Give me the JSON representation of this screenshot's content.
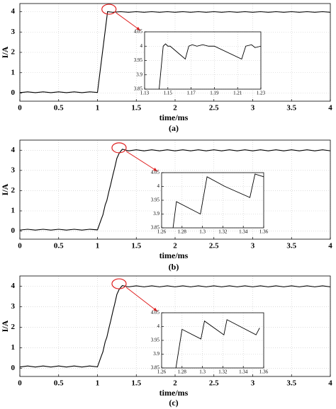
{
  "chart_data": [
    {
      "type": "line",
      "caption": "(a)",
      "x_label": "time/ms",
      "y_label": "I/A",
      "grid": true,
      "xlim": [
        0,
        4
      ],
      "ylim": [
        -0.4,
        4.4
      ],
      "xticks": [
        0,
        0.5,
        1,
        1.5,
        2,
        2.5,
        3,
        3.5,
        4
      ],
      "yticks": [
        0,
        1,
        2,
        3,
        4
      ],
      "series": [
        {
          "color": "#000000",
          "x": [
            0,
            0.1,
            0.2,
            0.3,
            0.4,
            0.5,
            0.6,
            0.7,
            0.8,
            0.9,
            1.0,
            1.13,
            1.2,
            1.3,
            1.4,
            1.5,
            1.6,
            1.7,
            1.8,
            1.9,
            2.0,
            2.1,
            2.2,
            2.3,
            2.4,
            2.5,
            2.6,
            2.7,
            2.8,
            2.9,
            3.0,
            3.1,
            3.2,
            3.3,
            3.4,
            3.5,
            3.6,
            3.7,
            3.8,
            3.9,
            4.0
          ],
          "values": [
            0.02,
            0.06,
            0.02,
            0.06,
            0.02,
            0.06,
            0.02,
            0.06,
            0.02,
            0.06,
            0.03,
            4.0,
            3.97,
            4.0,
            3.97,
            4.0,
            3.97,
            4.0,
            3.97,
            4.0,
            3.97,
            4.0,
            3.97,
            4.0,
            3.97,
            4.0,
            3.97,
            4.0,
            3.97,
            4.0,
            3.97,
            4.0,
            3.97,
            4.0,
            3.97,
            4.0,
            3.97,
            4.0,
            3.97,
            4.0,
            3.97
          ]
        }
      ],
      "inset": {
        "xlim": [
          1.13,
          1.23
        ],
        "ylim": [
          3.85,
          4.05
        ],
        "xticks": [
          1.13,
          1.15,
          1.17,
          1.19,
          1.21,
          1.23
        ],
        "yticks": [
          3.85,
          3.9,
          3.95,
          4,
          4.05
        ],
        "series": [
          {
            "color": "#000000",
            "x": [
              1.1425,
              1.146,
              1.148,
              1.15,
              1.152,
              1.165,
              1.168,
              1.171,
              1.175,
              1.18,
              1.185,
              1.19,
              1.2135,
              1.217,
              1.222,
              1.225,
              1.23
            ],
            "values": [
              3.85,
              4.0,
              4.008,
              4.0,
              4.0,
              3.955,
              4.0,
              4.005,
              4.0,
              4.005,
              4.0,
              4.0,
              3.955,
              4.0,
              4.005,
              3.995,
              4.0
            ]
          }
        ]
      }
    },
    {
      "type": "line",
      "caption": "(b)",
      "x_label": "time/ms",
      "y_label": "I/A",
      "grid": true,
      "xlim": [
        0,
        4
      ],
      "ylim": [
        -0.4,
        4.5
      ],
      "xticks": [
        0,
        0.5,
        1,
        1.5,
        2,
        2.5,
        3,
        3.5,
        4
      ],
      "yticks": [
        0,
        1,
        2,
        3,
        4
      ],
      "series": [
        {
          "color": "#000000",
          "x": [
            0,
            0.1,
            0.2,
            0.3,
            0.4,
            0.5,
            0.6,
            0.7,
            0.8,
            0.9,
            1.0,
            1.05,
            1.07,
            1.1,
            1.12,
            1.15,
            1.17,
            1.2,
            1.22,
            1.25,
            1.28,
            1.32,
            1.4,
            1.5,
            1.6,
            1.7,
            1.8,
            1.9,
            2.0,
            2.1,
            2.2,
            2.3,
            2.4,
            2.5,
            2.6,
            2.7,
            2.8,
            2.9,
            3.0,
            3.1,
            3.2,
            3.3,
            3.4,
            3.5,
            3.6,
            3.7,
            3.8,
            3.9,
            4.0
          ],
          "values": [
            0.05,
            0.09,
            0.05,
            0.09,
            0.05,
            0.09,
            0.05,
            0.09,
            0.05,
            0.09,
            0.06,
            0.6,
            0.8,
            1.3,
            1.5,
            2.0,
            2.3,
            2.8,
            3.1,
            3.6,
            3.85,
            4.05,
            3.97,
            4.02,
            3.97,
            4.02,
            3.97,
            4.02,
            3.97,
            4.02,
            3.97,
            4.02,
            3.97,
            4.02,
            3.97,
            4.02,
            3.97,
            4.02,
            3.97,
            4.02,
            3.97,
            4.02,
            3.97,
            4.02,
            3.97,
            4.02,
            3.97,
            4.02,
            3.97
          ]
        }
      ],
      "inset": {
        "xlim": [
          1.26,
          1.36
        ],
        "ylim": [
          3.85,
          4.05
        ],
        "xticks": [
          1.26,
          1.28,
          1.3,
          1.32,
          1.34,
          1.36
        ],
        "yticks": [
          3.85,
          3.9,
          3.95,
          4,
          4.05
        ],
        "series": [
          {
            "color": "#000000",
            "x": [
              1.2712,
              1.2745,
              1.298,
              1.3045,
              1.322,
              1.3465,
              1.3515,
              1.36
            ],
            "values": [
              3.85,
              3.945,
              3.9,
              4.035,
              4.0,
              3.96,
              4.045,
              4.035
            ]
          }
        ]
      }
    },
    {
      "type": "line",
      "caption": "(c)",
      "x_label": "time/ms",
      "y_label": "I/A",
      "grid": true,
      "xlim": [
        0,
        4
      ],
      "ylim": [
        -0.4,
        4.5
      ],
      "xticks": [
        0,
        0.5,
        1,
        1.5,
        2,
        2.5,
        3,
        3.5,
        4
      ],
      "yticks": [
        0,
        1,
        2,
        3,
        4
      ],
      "series": [
        {
          "color": "#000000",
          "x": [
            0,
            0.1,
            0.2,
            0.3,
            0.4,
            0.5,
            0.6,
            0.7,
            0.8,
            0.9,
            1.0,
            1.05,
            1.07,
            1.1,
            1.12,
            1.15,
            1.17,
            1.2,
            1.22,
            1.25,
            1.28,
            1.32,
            1.4,
            1.5,
            1.6,
            1.7,
            1.8,
            1.9,
            2.0,
            2.1,
            2.2,
            2.3,
            2.4,
            2.5,
            2.6,
            2.7,
            2.8,
            2.9,
            3.0,
            3.1,
            3.2,
            3.3,
            3.4,
            3.5,
            3.6,
            3.7,
            3.8,
            3.9,
            4.0
          ],
          "values": [
            0.06,
            0.11,
            0.06,
            0.11,
            0.06,
            0.11,
            0.06,
            0.11,
            0.06,
            0.11,
            0.07,
            0.6,
            0.8,
            1.3,
            1.5,
            2.0,
            2.3,
            2.8,
            3.1,
            3.6,
            3.85,
            4.03,
            3.97,
            4.02,
            3.97,
            4.02,
            3.97,
            4.02,
            3.97,
            4.02,
            3.97,
            4.02,
            3.97,
            4.02,
            3.97,
            4.02,
            3.97,
            4.02,
            3.97,
            4.02,
            3.97,
            4.02,
            3.97,
            4.02,
            3.97,
            4.02,
            3.97,
            4.02,
            3.97
          ]
        }
      ],
      "inset": {
        "xlim": [
          1.26,
          1.36
        ],
        "ylim": [
          3.85,
          4.05
        ],
        "xticks": [
          1.26,
          1.28,
          1.3,
          1.32,
          1.34,
          1.36
        ],
        "yticks": [
          3.85,
          3.9,
          3.95,
          4,
          4.05
        ],
        "series": [
          {
            "color": "#000000",
            "x": [
              1.274,
              1.28,
              1.2985,
              1.302,
              1.321,
              1.324,
              1.3525,
              1.356
            ],
            "values": [
              3.85,
              3.99,
              3.955,
              4.02,
              3.97,
              4.025,
              3.97,
              3.995
            ]
          }
        ]
      }
    }
  ]
}
